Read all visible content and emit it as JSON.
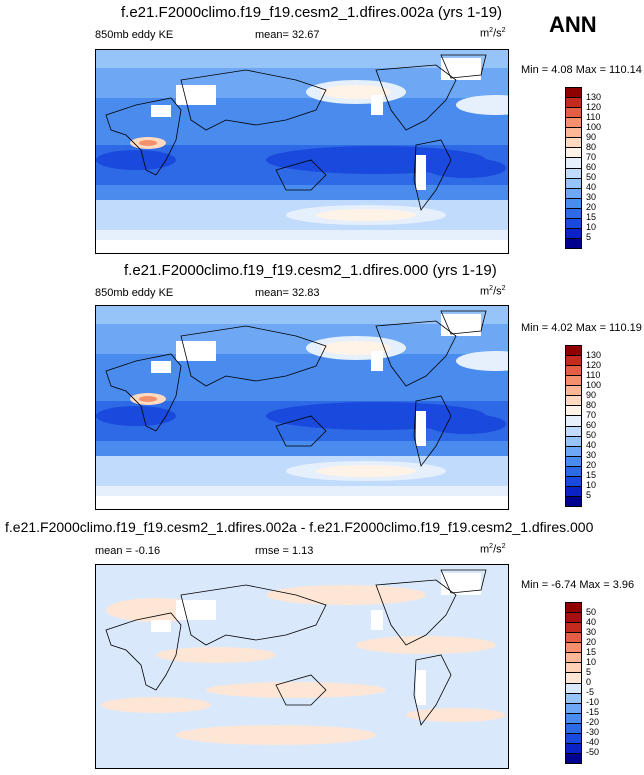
{
  "season": "ANN",
  "unit_prefix": "m",
  "unit_sup1": "2",
  "unit_mid": "/s",
  "unit_sup2": "2",
  "chart_data": [
    {
      "type": "heatmap",
      "title": "f.e21.F2000climo.f19_f19.cesm2_1.dfires.002a (yrs 1-19)",
      "left_label": "850mb eddy KE",
      "center_label": "mean=  32.67",
      "minmax": "Min =   4.08 Max = 110.14",
      "colorbar_levels": [
        "5",
        "10",
        "15",
        "20",
        "30",
        "40",
        "50",
        "60",
        "70",
        "80",
        "90",
        "100",
        "110",
        "120",
        "130"
      ],
      "colorbar_colors": [
        "#00008f",
        "#0a22c8",
        "#1a49dd",
        "#2e6ae6",
        "#4a8bee",
        "#6ea8f4",
        "#96c3f8",
        "#c0dbfb",
        "#e6f0fd",
        "#fff2e6",
        "#ffd9c0",
        "#fcb896",
        "#f5906e",
        "#e35e44",
        "#c22b1d",
        "#8f0000"
      ],
      "mean": 32.67,
      "min": 4.08,
      "max": 110.14
    },
    {
      "type": "heatmap",
      "title": "f.e21.F2000climo.f19_f19.cesm2_1.dfires.000 (yrs 1-19)",
      "left_label": "850mb eddy KE",
      "center_label": "mean=  32.83",
      "minmax": "Min =   4.02 Max = 110.19",
      "colorbar_levels": [
        "5",
        "10",
        "15",
        "20",
        "30",
        "40",
        "50",
        "60",
        "70",
        "80",
        "90",
        "100",
        "110",
        "120",
        "130"
      ],
      "colorbar_colors": [
        "#00008f",
        "#0a22c8",
        "#1a49dd",
        "#2e6ae6",
        "#4a8bee",
        "#6ea8f4",
        "#96c3f8",
        "#c0dbfb",
        "#e6f0fd",
        "#fff2e6",
        "#ffd9c0",
        "#fcb896",
        "#f5906e",
        "#e35e44",
        "#c22b1d",
        "#8f0000"
      ],
      "mean": 32.83,
      "min": 4.02,
      "max": 110.19
    },
    {
      "type": "heatmap",
      "title": "f.e21.F2000climo.f19_f19.cesm2_1.dfires.002a - f.e21.F2000climo.f19_f19.cesm2_1.dfires.000",
      "left_label": "mean =  -0.16",
      "center_label": "rmse =   1.13",
      "minmax": "Min =  -6.74 Max =   3.96",
      "colorbar_levels": [
        "-50",
        "-40",
        "-30",
        "-20",
        "-15",
        "-10",
        "-5",
        "0",
        "5",
        "10",
        "15",
        "20",
        "30",
        "40",
        "50"
      ],
      "colorbar_colors": [
        "#00008f",
        "#0a22c8",
        "#1a49dd",
        "#2e6ae6",
        "#4a8bee",
        "#6ea8f4",
        "#96c3f8",
        "#d9e9fb",
        "#fde6d6",
        "#ffd2b8",
        "#fcb896",
        "#f5906e",
        "#e35e44",
        "#c22b1d",
        "#a50f0f",
        "#8f0000"
      ],
      "mean": -0.16,
      "rmse": 1.13,
      "min": -6.74,
      "max": 3.96
    }
  ]
}
